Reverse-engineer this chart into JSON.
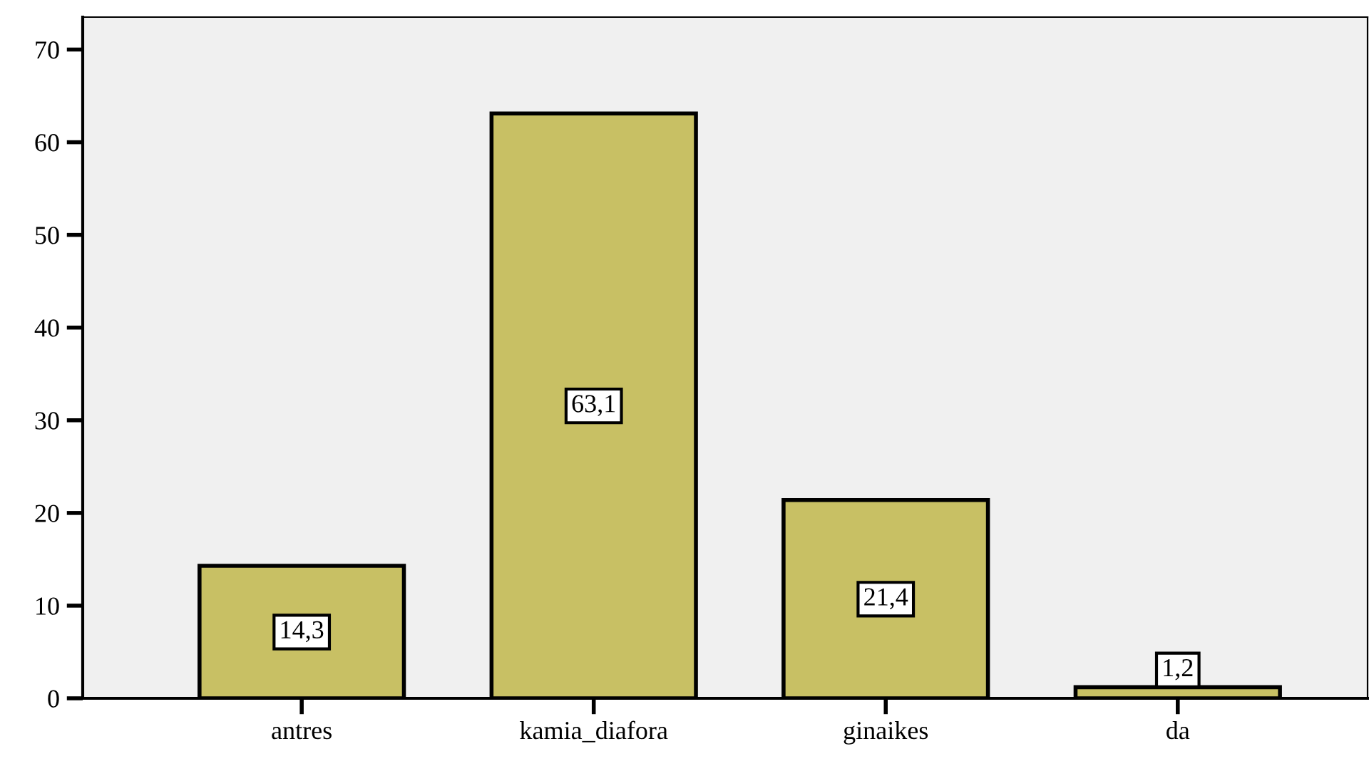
{
  "chart_data": {
    "type": "bar",
    "categories": [
      "antres",
      "kamia_diafora",
      "ginaikes",
      "da"
    ],
    "values": [
      14.3,
      63.1,
      21.4,
      1.2
    ],
    "value_labels": [
      "14,3",
      "63,1",
      "21,4",
      "1,2"
    ],
    "color": "#c8c064",
    "ylim": [
      0,
      73.5
    ],
    "yticks": [
      0,
      10,
      20,
      30,
      40,
      50,
      60,
      70
    ],
    "grid": false,
    "legend": false
  }
}
